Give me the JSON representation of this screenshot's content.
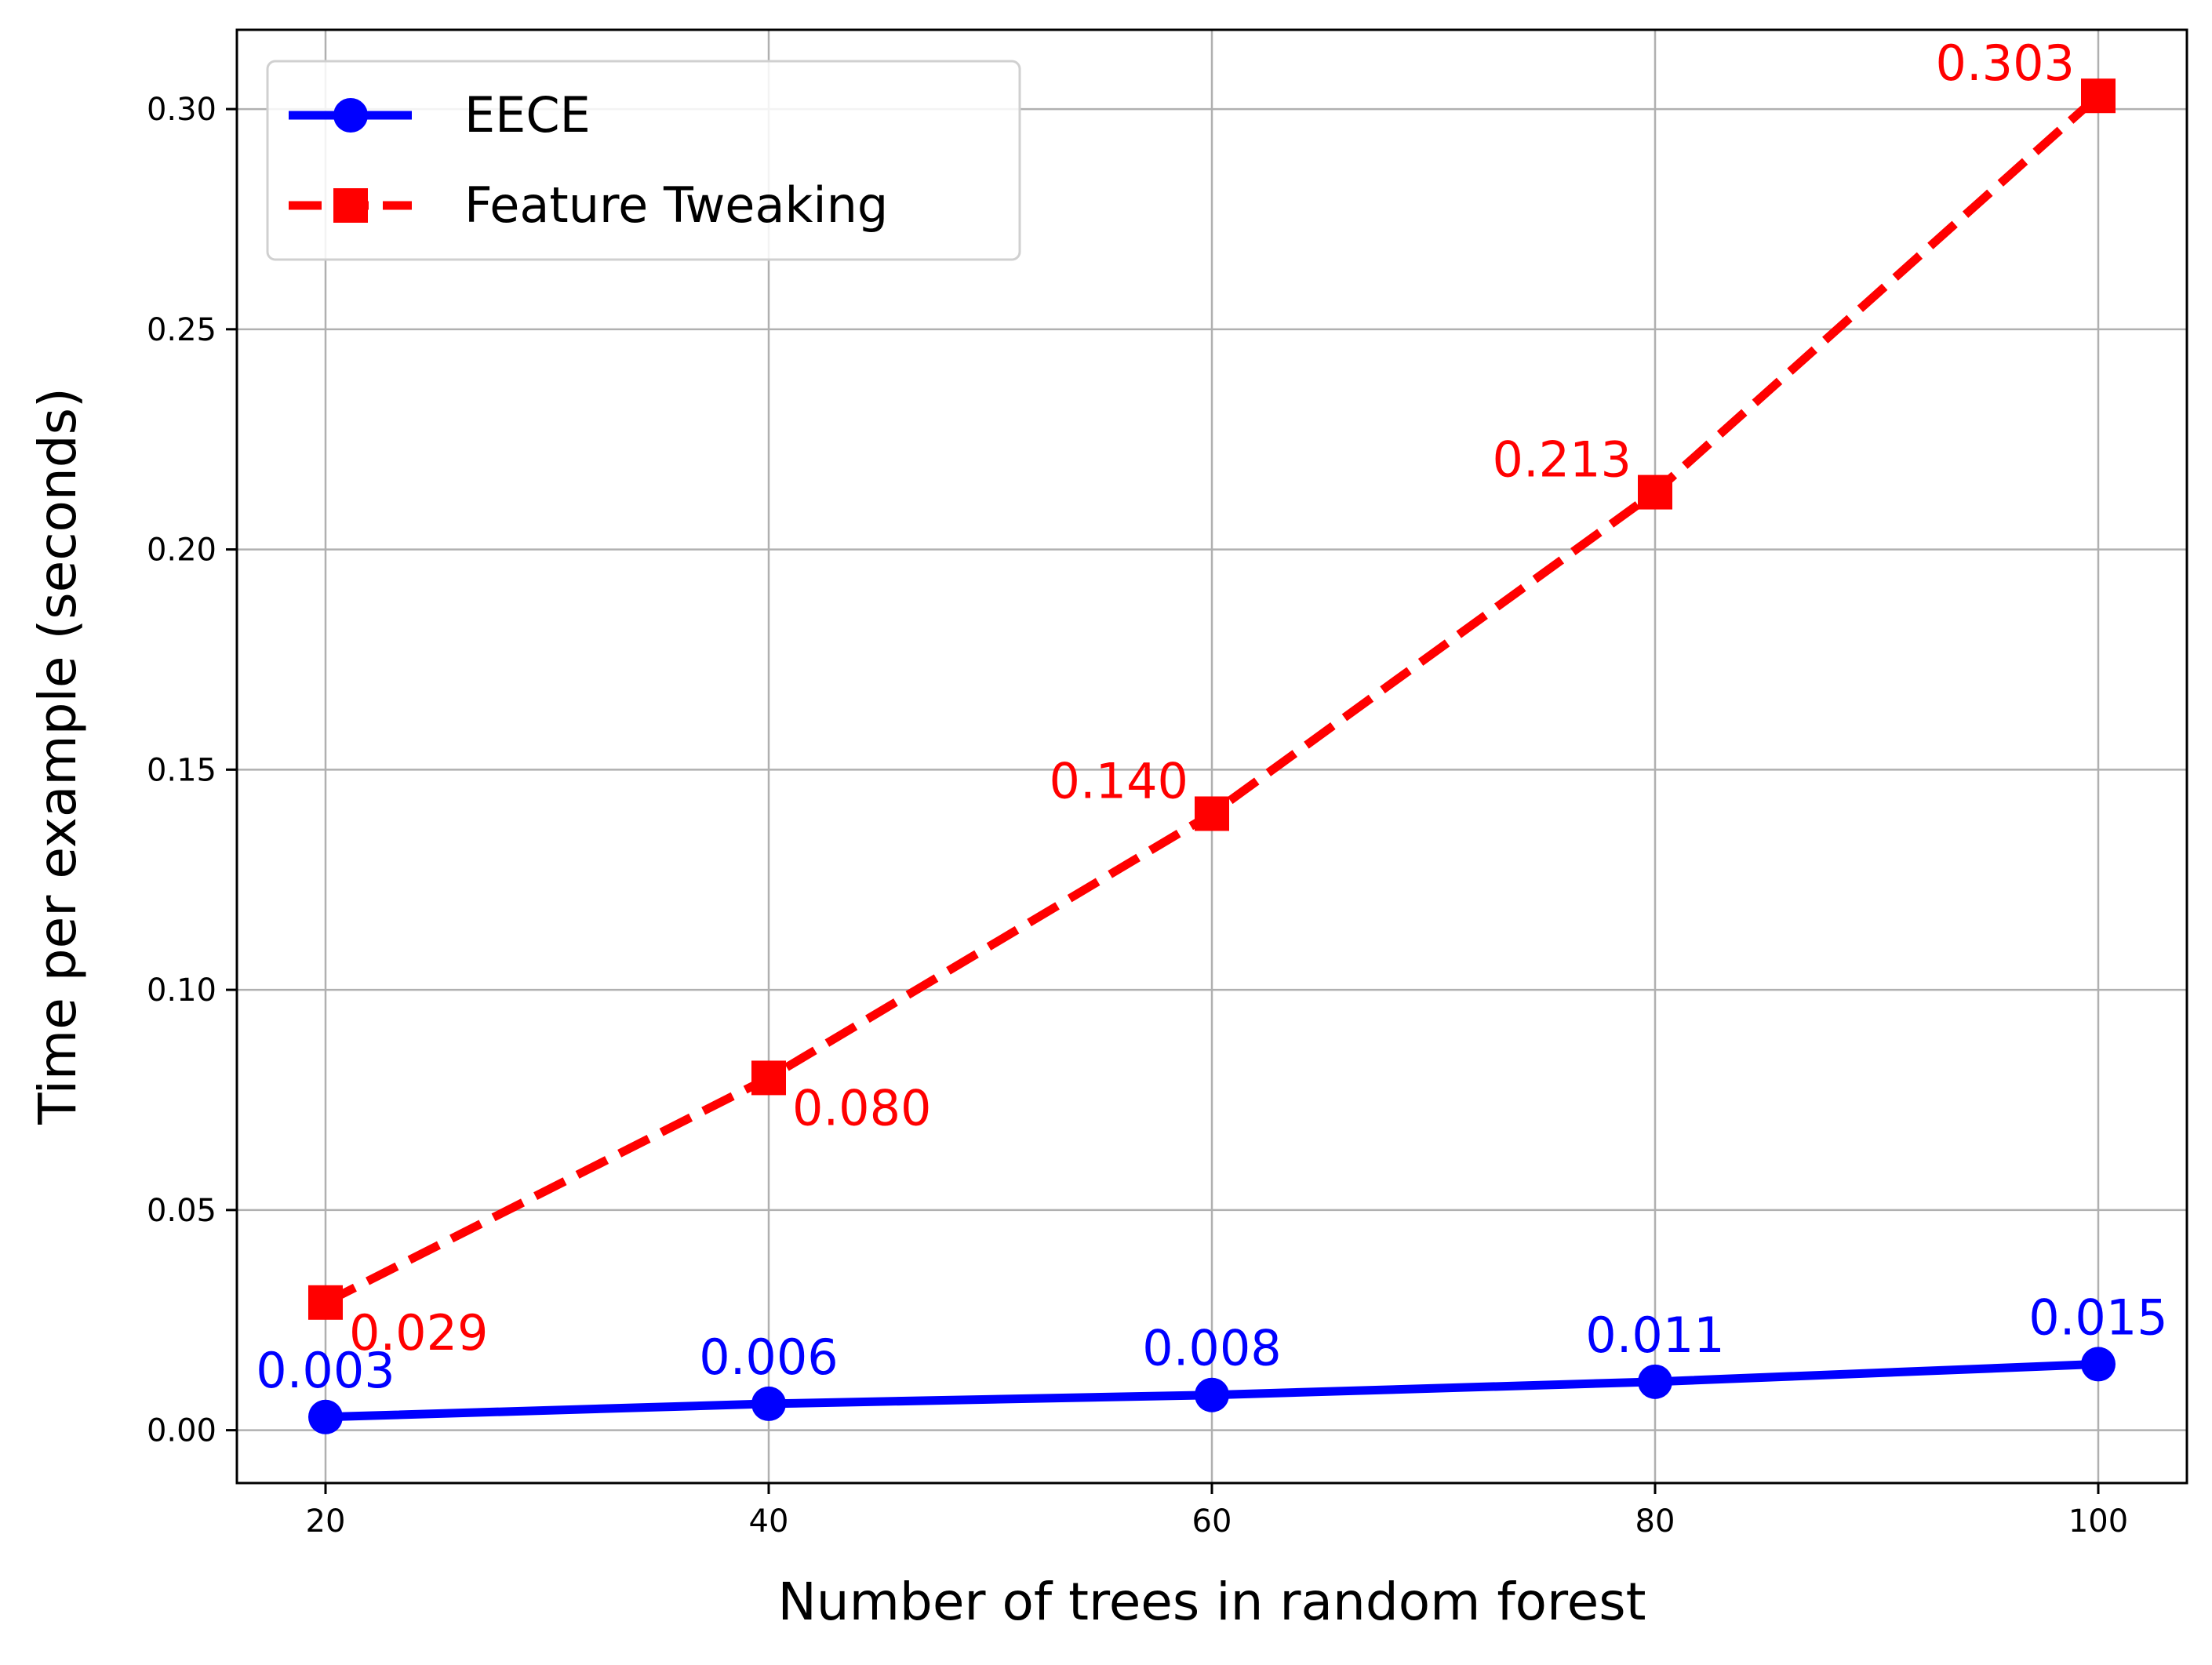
{
  "chart_data": {
    "type": "line",
    "title": "",
    "xlabel": "Number of trees in random forest",
    "ylabel": "Time per example (seconds)",
    "x": [
      20,
      40,
      60,
      80,
      100
    ],
    "xticks": [
      "20",
      "40",
      "60",
      "80",
      "100"
    ],
    "yticks": [
      "0.00",
      "0.05",
      "0.10",
      "0.15",
      "0.20",
      "0.25",
      "0.30"
    ],
    "xlim": [
      16,
      104
    ],
    "ylim": [
      -0.012,
      0.318
    ],
    "grid": true,
    "legend_position": "upper-left",
    "series": [
      {
        "name": "EECE",
        "values": [
          0.003,
          0.006,
          0.008,
          0.011,
          0.015
        ],
        "labels": [
          "0.003",
          "0.006",
          "0.008",
          "0.011",
          "0.015"
        ],
        "color": "#0000ff",
        "line_style": "solid",
        "marker": "circle"
      },
      {
        "name": "Feature Tweaking",
        "values": [
          0.029,
          0.08,
          0.14,
          0.213,
          0.303
        ],
        "labels": [
          "0.029",
          "0.080",
          "0.140",
          "0.213",
          "0.303"
        ],
        "color": "#ff0000",
        "line_style": "dashed",
        "marker": "square"
      }
    ]
  }
}
